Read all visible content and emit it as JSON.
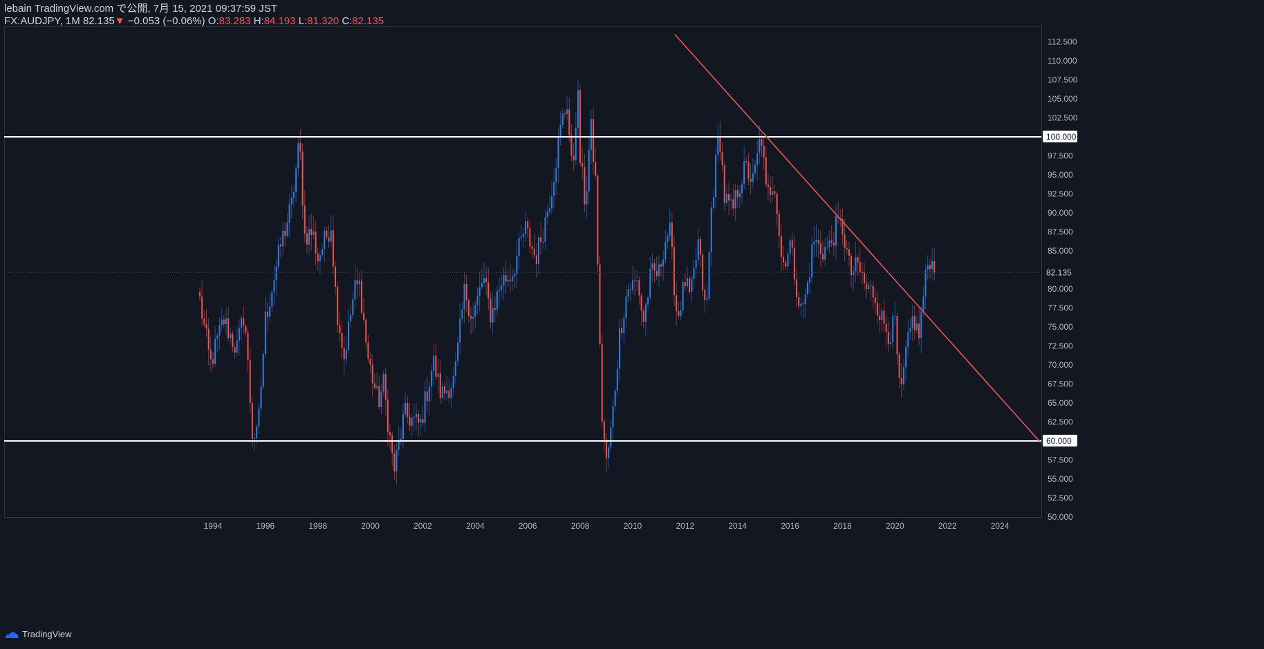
{
  "header": {
    "publisher": "lebain TradingView.com で公開, 7月 15, 2021 09:37:59 JST",
    "symbol": "FX:AUDJPY, 1M",
    "last": "82.135",
    "change_arrow": "▼",
    "change": "−0.053 (−0.06%)",
    "o_label": "O:",
    "o_value": "83.283",
    "h_label": "H:",
    "h_value": "84.193",
    "l_label": "L:",
    "l_value": "81.320",
    "c_label": "C:",
    "c_value": "82.135"
  },
  "footer": {
    "brand": "TradingView",
    "logo_icon": "tradingview-logo-icon"
  },
  "colors": {
    "background": "#131722",
    "up": "#2f7ee0",
    "down": "#ef5350",
    "text": "#d1d4dc",
    "axis_text": "#b2b5be",
    "level_line": "#ffffff",
    "trend_line": "#ef5350"
  },
  "price_boxes": {
    "level_high": "100.000",
    "level_low": "60.000",
    "current": "82.135"
  },
  "chart_data": {
    "type": "candlestick",
    "interval": "1M",
    "x_ticks": [
      "1994",
      "1996",
      "1998",
      "2000",
      "2002",
      "2004",
      "2006",
      "2008",
      "2010",
      "2012",
      "2014",
      "2016",
      "2018",
      "2020",
      "2022",
      "2024"
    ],
    "y_ticks": [
      "50.000",
      "52.500",
      "55.000",
      "57.500",
      "60.000",
      "62.500",
      "65.000",
      "67.500",
      "70.000",
      "72.500",
      "75.000",
      "77.500",
      "80.000",
      "82.500",
      "85.000",
      "87.500",
      "90.000",
      "92.500",
      "95.000",
      "97.500",
      "100.000",
      "102.500",
      "105.000",
      "107.500",
      "110.000",
      "112.500"
    ],
    "ylim": [
      50,
      113
    ],
    "xlim": [
      1986.04,
      2025.58
    ],
    "horizontal_levels": [
      100.0,
      60.0
    ],
    "trend_line": {
      "from": {
        "x": 2011.6,
        "y": 113.5
      },
      "to": {
        "x": 2025.5,
        "y": 60.0
      }
    },
    "anchors": [
      [
        1993.5,
        78.5
      ],
      [
        1993.9,
        70.0
      ],
      [
        1994.4,
        76.0
      ],
      [
        1994.9,
        72.0
      ],
      [
        1995.2,
        77.0
      ],
      [
        1995.5,
        61.0
      ],
      [
        1995.7,
        60.5
      ],
      [
        1996.0,
        76.0
      ],
      [
        1996.6,
        86.0
      ],
      [
        1997.0,
        91.0
      ],
      [
        1997.3,
        99.5
      ],
      [
        1997.5,
        87.0
      ],
      [
        1997.8,
        87.5
      ],
      [
        1998.0,
        84.0
      ],
      [
        1998.5,
        88.5
      ],
      [
        1998.7,
        78.0
      ],
      [
        1999.0,
        71.0
      ],
      [
        1999.4,
        80.0
      ],
      [
        1999.6,
        80.5
      ],
      [
        1999.9,
        71.0
      ],
      [
        2000.3,
        65.0
      ],
      [
        2000.5,
        67.5
      ],
      [
        2000.9,
        56.0
      ],
      [
        2001.3,
        63.5
      ],
      [
        2001.7,
        62.5
      ],
      [
        2001.9,
        62.0
      ],
      [
        2002.4,
        70.5
      ],
      [
        2002.7,
        66.0
      ],
      [
        2003.2,
        68.0
      ],
      [
        2003.6,
        80.0
      ],
      [
        2003.9,
        76.0
      ],
      [
        2004.3,
        81.5
      ],
      [
        2004.6,
        76.5
      ],
      [
        2005.0,
        81.0
      ],
      [
        2005.4,
        82.0
      ],
      [
        2005.9,
        88.0
      ],
      [
        2006.3,
        84.0
      ],
      [
        2006.6,
        88.0
      ],
      [
        2006.9,
        93.0
      ],
      [
        2007.3,
        102.0
      ],
      [
        2007.5,
        104.5
      ],
      [
        2007.7,
        94.5
      ],
      [
        2007.9,
        106.5
      ],
      [
        2008.0,
        97.0
      ],
      [
        2008.2,
        91.0
      ],
      [
        2008.4,
        101.5
      ],
      [
        2008.6,
        93.5
      ],
      [
        2008.8,
        64.5
      ],
      [
        2009.0,
        57.0
      ],
      [
        2009.2,
        62.0
      ],
      [
        2009.5,
        74.0
      ],
      [
        2009.8,
        80.0
      ],
      [
        2010.2,
        81.0
      ],
      [
        2010.4,
        75.5
      ],
      [
        2010.7,
        82.0
      ],
      [
        2011.0,
        82.0
      ],
      [
        2011.2,
        86.0
      ],
      [
        2011.4,
        88.0
      ],
      [
        2011.7,
        76.0
      ],
      [
        2012.0,
        81.0
      ],
      [
        2012.2,
        78.5
      ],
      [
        2012.5,
        86.0
      ],
      [
        2012.8,
        76.0
      ],
      [
        2013.0,
        90.5
      ],
      [
        2013.3,
        101.0
      ],
      [
        2013.5,
        92.0
      ],
      [
        2013.8,
        90.0
      ],
      [
        2014.0,
        93.0
      ],
      [
        2014.3,
        96.0
      ],
      [
        2014.6,
        94.0
      ],
      [
        2014.9,
        100.5
      ],
      [
        2015.1,
        92.0
      ],
      [
        2015.4,
        94.5
      ],
      [
        2015.7,
        83.0
      ],
      [
        2016.0,
        86.0
      ],
      [
        2016.4,
        77.0
      ],
      [
        2016.6,
        79.0
      ],
      [
        2016.9,
        86.5
      ],
      [
        2017.2,
        85.0
      ],
      [
        2017.5,
        85.5
      ],
      [
        2017.8,
        88.5
      ],
      [
        2018.0,
        88.0
      ],
      [
        2018.3,
        82.0
      ],
      [
        2018.6,
        83.0
      ],
      [
        2018.9,
        80.0
      ],
      [
        2019.2,
        79.5
      ],
      [
        2019.5,
        76.0
      ],
      [
        2019.8,
        74.0
      ],
      [
        2020.0,
        75.5
      ],
      [
        2020.2,
        65.0
      ],
      [
        2020.4,
        71.0
      ],
      [
        2020.7,
        76.5
      ],
      [
        2020.9,
        73.5
      ],
      [
        2021.1,
        79.5
      ],
      [
        2021.3,
        84.5
      ],
      [
        2021.5,
        82.135
      ]
    ]
  }
}
